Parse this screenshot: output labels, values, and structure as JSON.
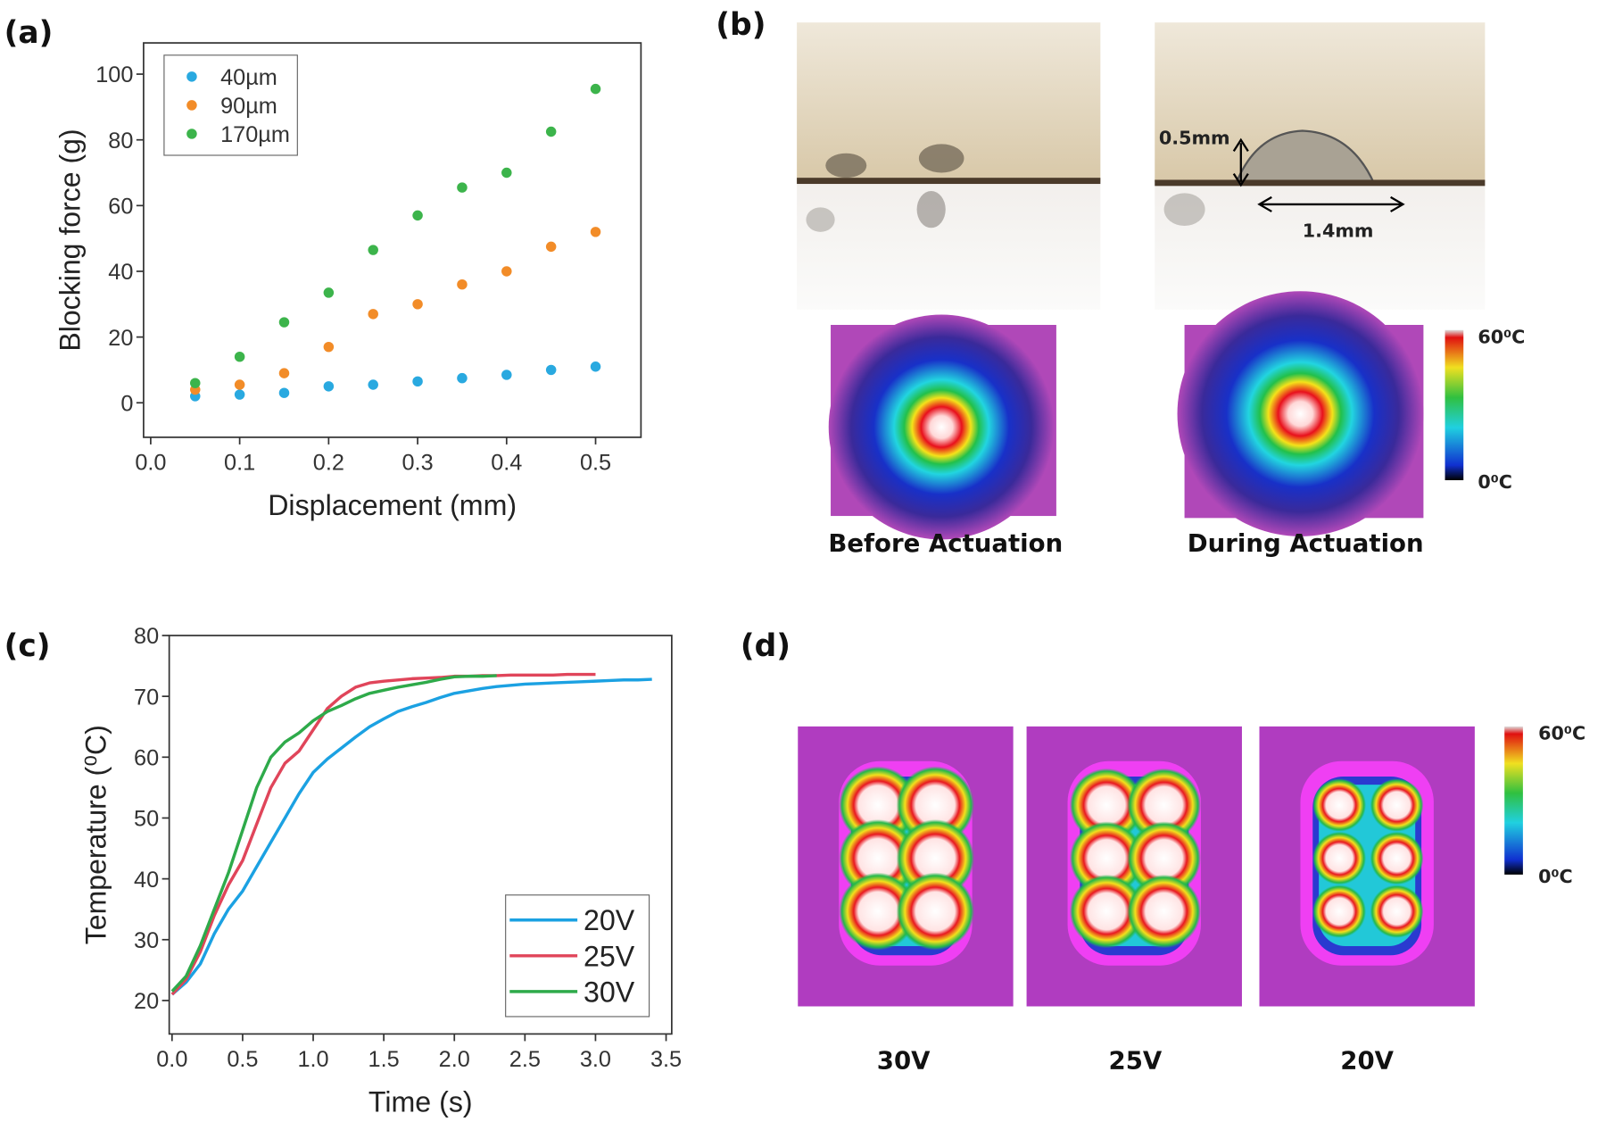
{
  "chart_data": [
    {
      "type": "scatter",
      "x_label": "Displacement (mm)",
      "y_label": "Blocking force (g)",
      "x": [
        0.05,
        0.1,
        0.15,
        0.2,
        0.25,
        0.3,
        0.35,
        0.4,
        0.45,
        0.5
      ],
      "series": [
        {
          "name": "40µm",
          "color": "#29a9e0",
          "values": [
            2,
            2.5,
            3,
            5,
            5.5,
            6.5,
            7.5,
            8.5,
            10,
            11
          ]
        },
        {
          "name": "90µm",
          "color": "#f28c28",
          "values": [
            4,
            5.5,
            9,
            17,
            27,
            30,
            36,
            40,
            47.5,
            52
          ]
        },
        {
          "name": "170µm",
          "color": "#3cb44b",
          "values": [
            6,
            14,
            24.5,
            33.5,
            46.5,
            57,
            65.5,
            70,
            82.5,
            95.5
          ]
        }
      ],
      "xlim": [
        -0.008,
        0.551
      ],
      "ylim": [
        -10.5,
        109.5
      ],
      "xticks": [
        {
          "value": 0,
          "label": "0.0"
        },
        0.1,
        0.2,
        0.3,
        0.4,
        0.5
      ],
      "yticks": [
        0,
        20,
        40,
        60,
        80,
        100
      ],
      "legend": "upper left"
    },
    {
      "type": "line",
      "x_label": "Time (s)",
      "y_label": "Temperature (⁰C)",
      "x": [
        0,
        0.1,
        0.2,
        0.3,
        0.4,
        0.5,
        0.6,
        0.7,
        0.8,
        0.9,
        1,
        1.1,
        1.2,
        1.3,
        1.4,
        1.5,
        1.6,
        1.7,
        1.8,
        1.9,
        2,
        2.1,
        2.2,
        2.3,
        2.4,
        2.5,
        2.6,
        2.7,
        2.8,
        2.9,
        3,
        3.1,
        3.2,
        3.3,
        3.4
      ],
      "series": [
        {
          "name": "20V",
          "color": "#1ba1e2",
          "values": [
            21,
            23,
            26,
            31,
            35,
            38,
            42,
            46,
            50,
            54,
            57.5,
            59.7,
            61.5,
            63.3,
            65,
            66.3,
            67.5,
            68.3,
            69,
            69.8,
            70.5,
            70.9,
            71.3,
            71.6,
            71.8,
            72,
            72.1,
            72.2,
            72.3,
            72.4,
            72.5,
            72.6,
            72.7,
            72.7,
            72.8
          ]
        },
        {
          "name": "25V",
          "color": "#e0455a",
          "values": [
            21,
            23.5,
            28,
            34,
            39,
            43,
            49,
            55,
            59,
            61,
            64.5,
            68,
            70,
            71.5,
            72.2,
            72.5,
            72.7,
            72.9,
            73,
            73.1,
            73.3,
            73.3,
            73.4,
            73.4,
            73.5,
            73.5,
            73.5,
            73.5,
            73.6,
            73.6,
            73.6,
            null,
            null,
            null,
            null
          ]
        },
        {
          "name": "30V",
          "color": "#2eaa4a",
          "values": [
            21.5,
            24,
            29,
            35,
            41,
            48,
            55,
            60,
            62.5,
            64,
            66,
            67.5,
            68.5,
            69.6,
            70.5,
            71,
            71.5,
            71.9,
            72.3,
            72.8,
            73.2,
            73.3,
            73.3,
            73.4,
            null,
            null,
            null,
            null,
            null,
            null,
            null,
            null,
            null,
            null,
            null
          ]
        }
      ],
      "xlim": [
        -0.02,
        3.54
      ],
      "ylim": [
        14.5,
        80
      ],
      "xticks": [
        {
          "value": 0,
          "label": "0.0"
        },
        0.5,
        {
          "value": 1,
          "label": "1.0"
        },
        1.5,
        {
          "value": 2,
          "label": "2.0"
        },
        2.5,
        {
          "value": 3,
          "label": "3.0"
        },
        3.5
      ],
      "yticks": [
        20,
        30,
        40,
        50,
        60,
        70,
        80
      ],
      "legend": "lower right"
    }
  ],
  "panels": {
    "a": "(a)",
    "b": "(b)",
    "c": "(c)",
    "d": "(d)"
  },
  "panel_b": {
    "height_label": "0.5mm",
    "width_label": "1.4mm",
    "captions": [
      "Before Actuation",
      "During Actuation"
    ],
    "colorbar": [
      "60⁰C",
      "0⁰C"
    ]
  },
  "panel_d": {
    "captions": [
      "30V",
      "25V",
      "20V"
    ],
    "colorbar": [
      "60⁰C",
      "0⁰C"
    ]
  }
}
